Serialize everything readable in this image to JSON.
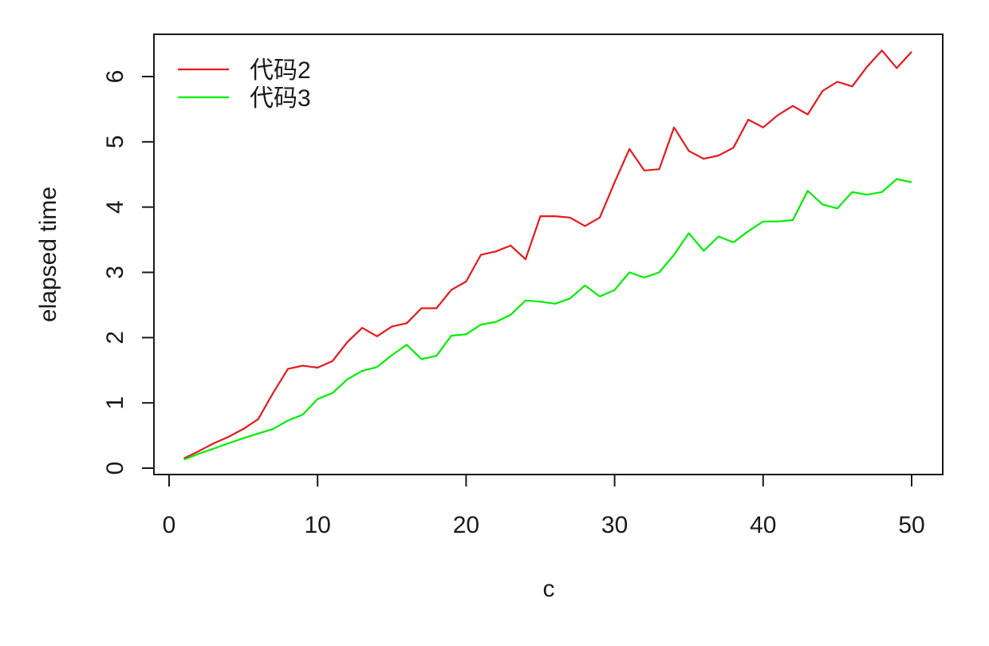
{
  "chart_data": {
    "type": "line",
    "title": "",
    "xlabel": "c",
    "ylabel": "elapsed time",
    "xlim": [
      0,
      50
    ],
    "ylim": [
      0,
      6.5
    ],
    "xticks": [
      0,
      10,
      20,
      30,
      40,
      50
    ],
    "yticks": [
      0,
      1,
      2,
      3,
      4,
      5,
      6
    ],
    "grid": false,
    "legend_position": "top-left",
    "x": [
      1,
      2,
      3,
      4,
      5,
      6,
      7,
      8,
      9,
      10,
      11,
      12,
      13,
      14,
      15,
      16,
      17,
      18,
      19,
      20,
      21,
      22,
      23,
      24,
      25,
      26,
      27,
      28,
      29,
      30,
      31,
      32,
      33,
      34,
      35,
      36,
      37,
      38,
      39,
      40,
      41,
      42,
      43,
      44,
      45,
      46,
      47,
      48,
      49,
      50
    ],
    "series": [
      {
        "name": "代码2",
        "color": "#e41a1c",
        "values": [
          0.15,
          0.26,
          0.38,
          0.48,
          0.6,
          0.75,
          1.15,
          1.52,
          1.57,
          1.54,
          1.64,
          1.93,
          2.15,
          2.02,
          2.17,
          2.22,
          2.45,
          2.45,
          2.73,
          2.86,
          3.27,
          3.32,
          3.41,
          3.2,
          3.86,
          3.86,
          3.84,
          3.71,
          3.84,
          4.38,
          4.89,
          4.56,
          4.58,
          5.22,
          4.86,
          4.74,
          4.79,
          4.91,
          5.34,
          5.22,
          5.41,
          5.55,
          5.42,
          5.78,
          5.92,
          5.85,
          6.15,
          6.4,
          6.13,
          6.38
        ]
      },
      {
        "name": "代码3",
        "color": "#00ee00",
        "values": [
          0.13,
          0.22,
          0.3,
          0.38,
          0.46,
          0.53,
          0.6,
          0.73,
          0.82,
          1.06,
          1.15,
          1.36,
          1.49,
          1.55,
          1.73,
          1.89,
          1.67,
          1.72,
          2.03,
          2.05,
          2.2,
          2.24,
          2.35,
          2.57,
          2.55,
          2.52,
          2.6,
          2.8,
          2.63,
          2.73,
          3.0,
          2.92,
          3.0,
          3.27,
          3.6,
          3.33,
          3.55,
          3.46,
          3.63,
          3.78,
          3.78,
          3.8,
          4.25,
          4.04,
          3.98,
          4.23,
          4.19,
          4.23,
          4.43,
          4.38
        ]
      }
    ]
  }
}
